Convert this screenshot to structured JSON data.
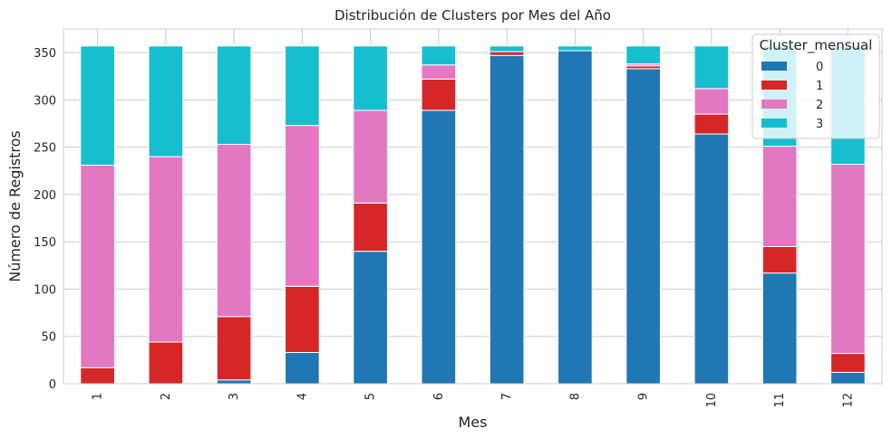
{
  "chart_data": {
    "type": "bar",
    "stacked": true,
    "title": "Distribución de Clusters por Mes del Año",
    "xlabel": "Mes",
    "ylabel": "Número de Registros",
    "categories": [
      "1",
      "2",
      "3",
      "4",
      "5",
      "6",
      "7",
      "8",
      "9",
      "10",
      "11",
      "12"
    ],
    "ylim": [
      0,
      375
    ],
    "yticks": [
      0,
      50,
      100,
      150,
      200,
      250,
      300,
      350
    ],
    "grid": true,
    "legend": {
      "title": "Cluster_mensual",
      "placement": "top-right"
    },
    "series": [
      {
        "name": "0",
        "color": "#1f77b4",
        "values": [
          0,
          0,
          4,
          33,
          140,
          289,
          347,
          352,
          333,
          264,
          117,
          12
        ]
      },
      {
        "name": "1",
        "color": "#d62728",
        "values": [
          17,
          44,
          67,
          70,
          51,
          33,
          4,
          0,
          3,
          21,
          28,
          20
        ]
      },
      {
        "name": "2",
        "color": "#e377c2",
        "values": [
          214,
          196,
          182,
          170,
          98,
          15,
          0,
          0,
          2,
          27,
          106,
          200
        ]
      },
      {
        "name": "3",
        "color": "#17becf",
        "values": [
          126,
          117,
          104,
          84,
          68,
          20,
          6,
          5,
          19,
          45,
          106,
          125
        ]
      }
    ]
  }
}
